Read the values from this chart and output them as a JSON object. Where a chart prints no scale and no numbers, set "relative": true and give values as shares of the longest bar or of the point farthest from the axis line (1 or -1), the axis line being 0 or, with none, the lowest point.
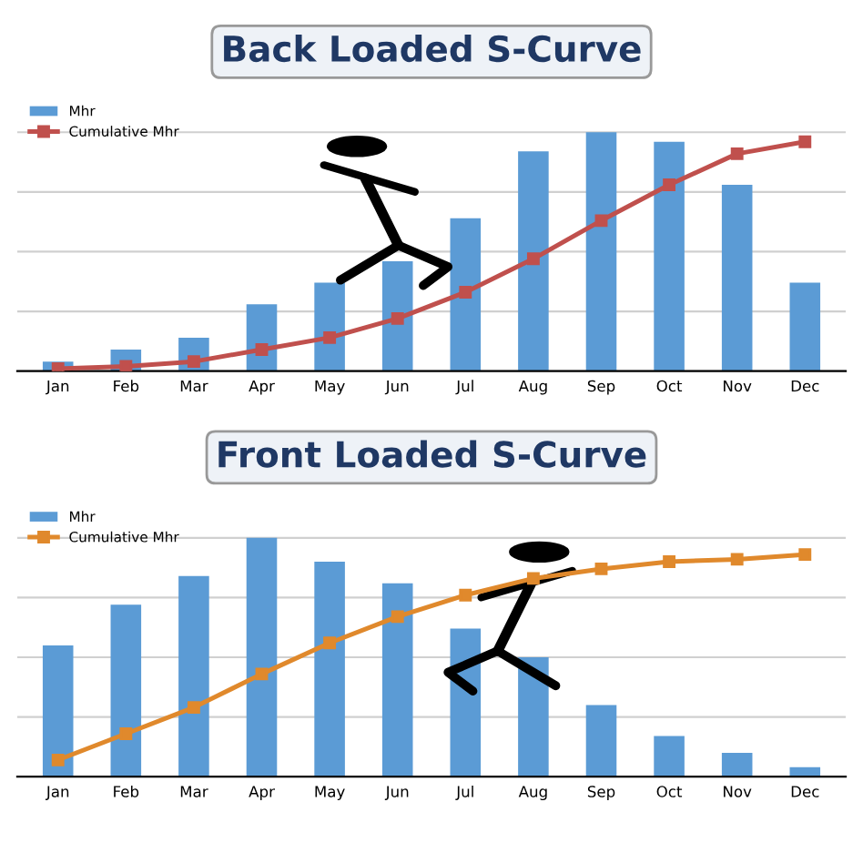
{
  "chart_data": [
    {
      "type": "bar",
      "title": "Back Loaded S-Curve",
      "relative": true,
      "grid": "y",
      "legend": "top left",
      "marker": "square",
      "categories": [
        "Jan",
        "Feb",
        "Mar",
        "Apr",
        "May",
        "Jun",
        "Jul",
        "Aug",
        "Sep",
        "Oct",
        "Nov",
        "Dec"
      ],
      "series": [
        {
          "name": "Mhr",
          "color": "#5b9bd5",
          "values": [
            0.04,
            0.09,
            0.14,
            0.28,
            0.37,
            0.46,
            0.64,
            0.92,
            1,
            0.96,
            0.78,
            0.37
          ]
        },
        {
          "name": "Cumulative Mhr",
          "type": "line",
          "color": "#c0504d",
          "values": [
            0.01,
            0.02,
            0.04,
            0.09,
            0.14,
            0.22,
            0.33,
            0.47,
            0.63,
            0.78,
            0.91,
            0.96
          ]
        }
      ]
    },
    {
      "type": "bar",
      "title": "Front Loaded S-Curve",
      "relative": true,
      "grid": "y",
      "legend": "top left",
      "marker": "square",
      "categories": [
        "Jan",
        "Feb",
        "Mar",
        "Apr",
        "May",
        "Jun",
        "Jul",
        "Aug",
        "Sep",
        "Oct",
        "Nov",
        "Dec"
      ],
      "series": [
        {
          "name": "Mhr",
          "color": "#5b9bd5",
          "values": [
            0.55,
            0.72,
            0.84,
            1,
            0.9,
            0.81,
            0.62,
            0.5,
            0.3,
            0.17,
            0.1,
            0.04
          ]
        },
        {
          "name": "Cumulative Mhr",
          "type": "line",
          "color": "#e0892c",
          "values": [
            0.07,
            0.18,
            0.29,
            0.43,
            0.56,
            0.67,
            0.76,
            0.83,
            0.87,
            0.9,
            0.91,
            0.93
          ]
        }
      ]
    }
  ]
}
